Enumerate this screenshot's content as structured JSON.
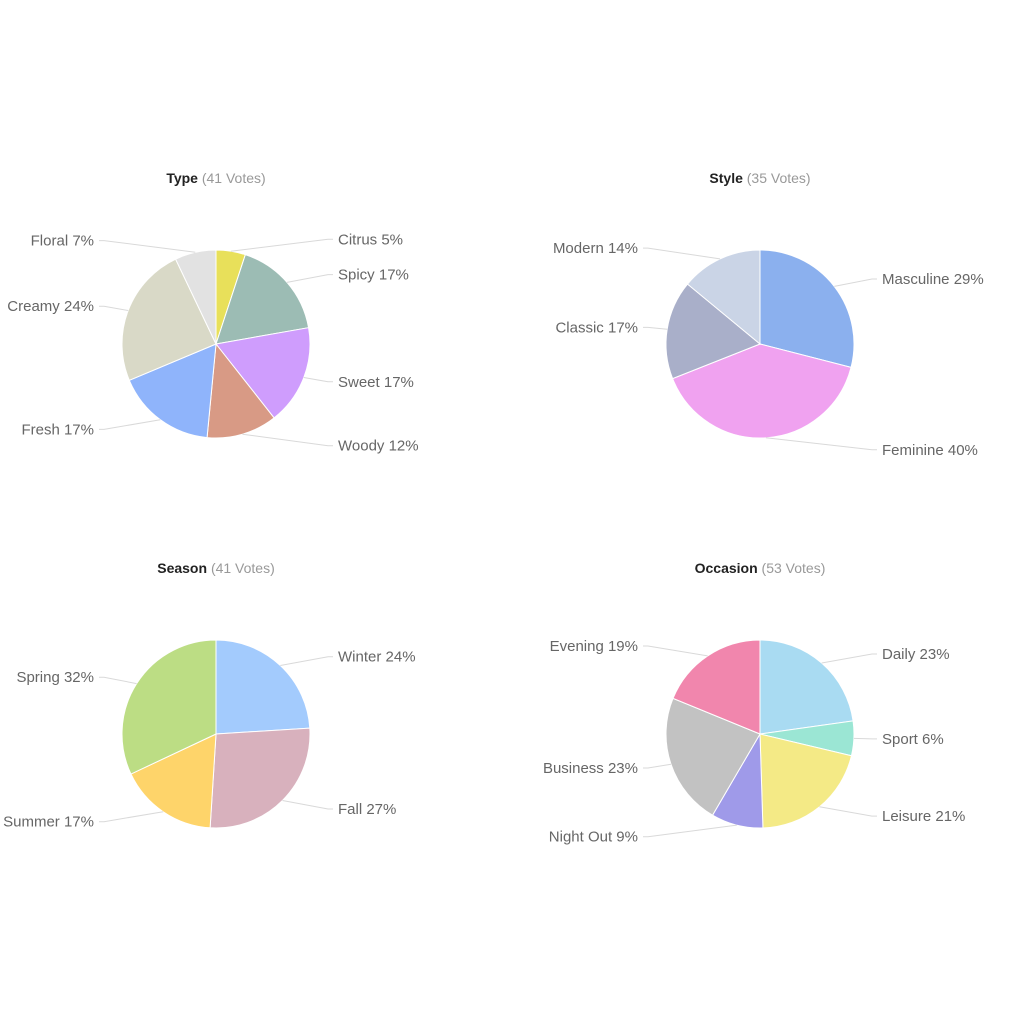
{
  "chart_data": [
    {
      "type": "pie",
      "title": "Type",
      "subtitle": "(41 Votes)",
      "slices": [
        {
          "label": "Citrus 5%",
          "value": 5,
          "color": "#e8e05a"
        },
        {
          "label": "Spicy 17%",
          "value": 17,
          "color": "#9cbcb4"
        },
        {
          "label": "Sweet 17%",
          "value": 17,
          "color": "#cf9dfd"
        },
        {
          "label": "Woody 12%",
          "value": 12,
          "color": "#d89a85"
        },
        {
          "label": "Fresh 17%",
          "value": 17,
          "color": "#8fb4fb"
        },
        {
          "label": "Creamy 24%",
          "value": 24,
          "color": "#d9d9c7"
        },
        {
          "label": "Floral 7%",
          "value": 7,
          "color": "#e2e2e2"
        }
      ]
    },
    {
      "type": "pie",
      "title": "Style",
      "subtitle": "(35 Votes)",
      "slices": [
        {
          "label": "Masculine 29%",
          "value": 29,
          "color": "#8bb0ee"
        },
        {
          "label": "Feminine 40%",
          "value": 40,
          "color": "#f0a2f0"
        },
        {
          "label": "Classic 17%",
          "value": 17,
          "color": "#a9afc9"
        },
        {
          "label": "Modern 14%",
          "value": 14,
          "color": "#cad4e6"
        }
      ]
    },
    {
      "type": "pie",
      "title": "Season",
      "subtitle": "(41 Votes)",
      "slices": [
        {
          "label": "Winter 24%",
          "value": 24,
          "color": "#a3cbfd"
        },
        {
          "label": "Fall 27%",
          "value": 27,
          "color": "#d8b1bd"
        },
        {
          "label": "Summer 17%",
          "value": 17,
          "color": "#fed46a"
        },
        {
          "label": "Spring 32%",
          "value": 32,
          "color": "#bcdd84"
        }
      ]
    },
    {
      "type": "pie",
      "title": "Occasion",
      "subtitle": "(53 Votes)",
      "slices": [
        {
          "label": "Daily 23%",
          "value": 23,
          "color": "#a9dbf2"
        },
        {
          "label": "Sport 6%",
          "value": 6,
          "color": "#9be6d4"
        },
        {
          "label": "Leisure 21%",
          "value": 21,
          "color": "#f4ea86"
        },
        {
          "label": "Night Out 9%",
          "value": 9,
          "color": "#9f9ae9"
        },
        {
          "label": "Business 23%",
          "value": 23,
          "color": "#c2c2c2"
        },
        {
          "label": "Evening 19%",
          "value": 19,
          "color": "#f186ad"
        }
      ]
    }
  ]
}
